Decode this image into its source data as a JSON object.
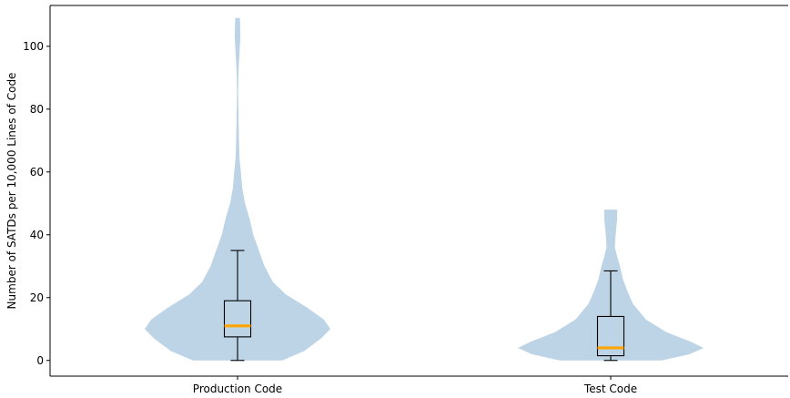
{
  "chart_data": {
    "type": "violin",
    "title": "",
    "xlabel": "",
    "ylabel": "Number of SATDs per 10,000 Lines of Code",
    "ylim": [
      -5,
      113
    ],
    "yticks": [
      0,
      20,
      40,
      60,
      80,
      100
    ],
    "grid": false,
    "categories": [
      "Production Code",
      "Test Code"
    ],
    "colors": {
      "violin_fill": "#bcd4e6",
      "median": "#ffa500",
      "box_stroke": "#000000",
      "axis": "#000000"
    },
    "distributions": [
      {
        "category": "Production Code",
        "box": {
          "whisker_low": 0,
          "q1": 7.5,
          "median": 11,
          "q3": 19,
          "whisker_high": 35
        },
        "min": 0,
        "max": 109,
        "density": [
          [
            0,
            0.48
          ],
          [
            3,
            0.72
          ],
          [
            7,
            0.9
          ],
          [
            10,
            1.0
          ],
          [
            13,
            0.93
          ],
          [
            17,
            0.74
          ],
          [
            21,
            0.52
          ],
          [
            25,
            0.38
          ],
          [
            30,
            0.29
          ],
          [
            35,
            0.23
          ],
          [
            40,
            0.17
          ],
          [
            45,
            0.13
          ],
          [
            50,
            0.08
          ],
          [
            55,
            0.05
          ],
          [
            60,
            0.035
          ],
          [
            65,
            0.02
          ],
          [
            75,
            0.012
          ],
          [
            85,
            0.006
          ],
          [
            92,
            0.01
          ],
          [
            97,
            0.02
          ],
          [
            103,
            0.03
          ],
          [
            109,
            0.025
          ]
        ]
      },
      {
        "category": "Test Code",
        "box": {
          "whisker_low": 0,
          "q1": 1.5,
          "median": 4,
          "q3": 14,
          "whisker_high": 28.5
        },
        "min": 0,
        "max": 48,
        "density": [
          [
            0,
            0.55
          ],
          [
            2,
            0.85
          ],
          [
            4,
            1.0
          ],
          [
            6,
            0.86
          ],
          [
            9,
            0.6
          ],
          [
            13,
            0.38
          ],
          [
            18,
            0.24
          ],
          [
            22,
            0.18
          ],
          [
            26,
            0.13
          ],
          [
            30,
            0.1
          ],
          [
            33,
            0.07
          ],
          [
            36,
            0.045
          ],
          [
            39,
            0.05
          ],
          [
            42,
            0.06
          ],
          [
            45,
            0.07
          ],
          [
            48,
            0.07
          ]
        ]
      }
    ]
  }
}
